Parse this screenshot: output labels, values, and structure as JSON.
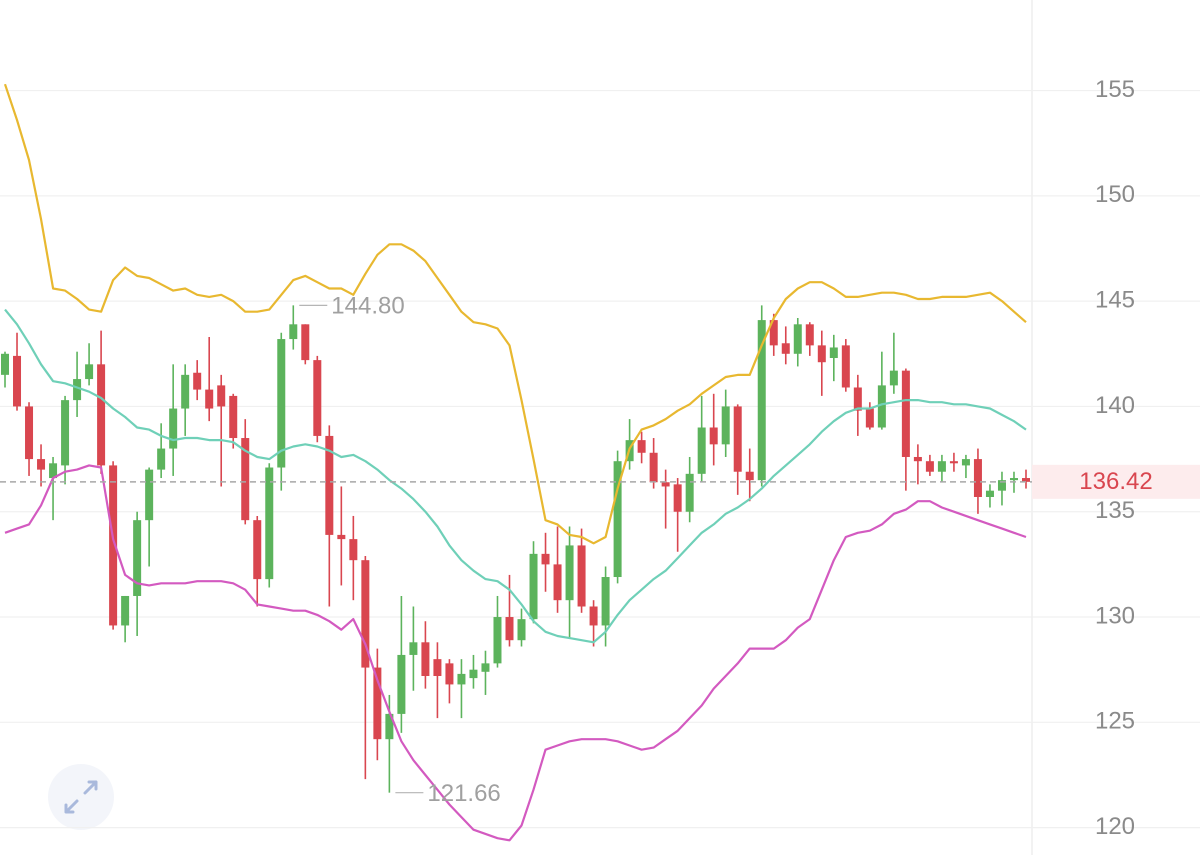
{
  "chart_data": {
    "type": "candlestick",
    "ylim": [
      118.7,
      159.3
    ],
    "yticks": [
      120,
      125,
      130,
      135,
      140,
      145,
      150,
      155
    ],
    "grid": true,
    "up_color": "#5cb35c",
    "down_color": "#d9464f",
    "open": [
      141.5,
      142.4,
      140.0,
      137.5,
      136.6,
      137.2,
      140.3,
      141.3,
      142.0,
      137.2,
      129.6,
      131.0,
      134.6,
      137.0,
      138.0,
      139.9,
      141.6,
      140.8,
      141.0,
      140.5,
      138.5,
      134.6,
      131.8,
      137.1,
      143.2,
      143.9,
      142.2,
      138.6,
      133.9,
      133.7,
      132.7,
      127.6,
      124.2,
      125.4,
      128.2,
      128.8,
      128.0,
      127.8,
      126.8,
      127.1,
      127.4,
      127.8,
      130.0,
      128.9,
      129.9,
      133.0,
      132.5,
      130.8,
      133.4,
      130.5,
      129.6,
      131.9,
      137.4,
      138.4,
      137.8,
      136.4,
      136.3,
      135.0,
      136.8,
      139.0,
      138.2,
      140.0,
      136.9,
      136.5,
      144.1,
      143.0,
      142.5,
      143.9,
      142.9,
      142.3,
      142.9,
      140.9,
      139.9,
      139.0,
      141.0,
      141.7,
      137.6,
      137.4,
      136.9,
      137.4,
      137.2,
      137.5,
      135.7,
      136.0,
      136.5,
      136.6
    ],
    "high": [
      142.6,
      143.5,
      140.2,
      138.2,
      137.6,
      140.5,
      142.6,
      143.0,
      143.6,
      137.4,
      131.0,
      135.0,
      137.1,
      139.2,
      142.0,
      142.0,
      142.2,
      143.3,
      141.5,
      140.6,
      139.4,
      134.8,
      137.3,
      143.5,
      144.8,
      143.9,
      142.4,
      139.1,
      136.2,
      134.8,
      132.9,
      128.5,
      126.3,
      131.0,
      130.5,
      129.8,
      128.8,
      128.0,
      128.0,
      128.2,
      128.4,
      131.0,
      132.0,
      130.4,
      133.6,
      134.0,
      134.3,
      134.3,
      134.2,
      130.8,
      132.4,
      137.9,
      139.4,
      138.8,
      138.5,
      137.0,
      136.6,
      137.6,
      140.5,
      140.6,
      140.8,
      140.1,
      138.0,
      144.8,
      144.4,
      143.8,
      144.2,
      144.0,
      143.6,
      143.4,
      143.2,
      141.5,
      140.2,
      142.6,
      143.5,
      141.8,
      138.2,
      137.7,
      137.7,
      137.8,
      137.7,
      138.0,
      136.3,
      136.9,
      136.9,
      137.0
    ],
    "low": [
      140.9,
      139.8,
      136.7,
      136.2,
      134.6,
      136.3,
      139.5,
      141.0,
      136.8,
      129.4,
      128.8,
      129.1,
      132.4,
      136.6,
      136.7,
      138.6,
      140.3,
      139.3,
      136.2,
      138.0,
      134.4,
      130.5,
      131.4,
      136.0,
      142.7,
      142.0,
      138.3,
      130.5,
      131.5,
      130.8,
      122.3,
      123.2,
      121.66,
      124.5,
      126.5,
      126.6,
      125.2,
      125.9,
      125.2,
      126.6,
      126.3,
      127.6,
      128.6,
      128.6,
      129.7,
      131.2,
      130.2,
      129.0,
      130.2,
      128.6,
      128.6,
      131.6,
      137.0,
      137.3,
      136.1,
      134.2,
      133.1,
      134.5,
      136.4,
      137.2,
      137.6,
      135.8,
      135.5,
      136.2,
      142.4,
      142.0,
      141.9,
      142.4,
      140.5,
      141.2,
      140.7,
      138.6,
      138.9,
      138.9,
      140.6,
      136.0,
      136.3,
      136.7,
      136.4,
      136.9,
      136.6,
      134.9,
      135.2,
      135.3,
      135.9,
      136.1
    ],
    "close": [
      142.5,
      140.0,
      137.5,
      137.0,
      137.3,
      140.3,
      141.3,
      142.0,
      137.2,
      129.6,
      131.0,
      134.6,
      137.0,
      138.0,
      139.9,
      141.5,
      140.8,
      139.9,
      140.0,
      138.5,
      134.6,
      131.8,
      137.1,
      143.2,
      143.9,
      142.2,
      138.6,
      133.9,
      133.7,
      132.7,
      127.6,
      124.2,
      125.4,
      128.2,
      128.8,
      127.2,
      127.2,
      126.8,
      127.3,
      127.5,
      127.8,
      130.0,
      128.9,
      129.9,
      133.0,
      132.5,
      130.8,
      133.4,
      130.5,
      129.6,
      131.9,
      137.4,
      138.4,
      137.8,
      136.4,
      136.2,
      135.0,
      136.8,
      139.0,
      138.2,
      140.0,
      136.9,
      136.5,
      144.1,
      142.9,
      142.5,
      143.9,
      142.9,
      142.1,
      142.8,
      140.9,
      139.8,
      139.0,
      141.0,
      141.7,
      137.6,
      137.4,
      136.9,
      137.4,
      137.3,
      137.5,
      135.7,
      136.0,
      136.5,
      136.6,
      136.42
    ],
    "bands": [
      {
        "color": "#e8b830",
        "values": [
          155.3,
          153.6,
          151.7,
          148.9,
          145.6,
          145.5,
          145.1,
          144.6,
          144.5,
          146.0,
          146.6,
          146.2,
          146.1,
          145.8,
          145.5,
          145.6,
          145.3,
          145.2,
          145.3,
          145.0,
          144.5,
          144.5,
          144.6,
          145.3,
          146.0,
          146.2,
          145.9,
          145.6,
          145.6,
          145.3,
          146.3,
          147.2,
          147.7,
          147.7,
          147.4,
          146.9,
          146.1,
          145.3,
          144.5,
          144.0,
          143.9,
          143.7,
          142.9,
          140.3,
          137.5,
          134.6,
          134.4,
          133.9,
          133.8,
          133.5,
          133.8,
          136.1,
          138.0,
          138.9,
          139.1,
          139.4,
          139.8,
          140.1,
          140.6,
          141.0,
          141.4,
          141.5,
          141.5,
          142.9,
          144.2,
          145.1,
          145.6,
          145.9,
          145.9,
          145.6,
          145.2,
          145.2,
          145.3,
          145.4,
          145.4,
          145.3,
          145.1,
          145.1,
          145.2,
          145.2,
          145.2,
          145.3,
          145.4,
          145.0,
          144.5,
          144.0
        ]
      },
      {
        "color": "#6fd0b8",
        "values": [
          144.6,
          143.9,
          143.0,
          142.0,
          141.2,
          141.1,
          140.9,
          140.7,
          140.4,
          139.9,
          139.5,
          139.0,
          138.9,
          138.6,
          138.4,
          138.5,
          138.5,
          138.4,
          138.4,
          138.3,
          137.9,
          137.6,
          137.5,
          137.9,
          138.1,
          138.2,
          138.1,
          137.9,
          137.6,
          137.7,
          137.4,
          137.0,
          136.5,
          136.1,
          135.6,
          135.0,
          134.3,
          133.4,
          132.7,
          132.2,
          131.8,
          131.7,
          131.3,
          130.6,
          129.8,
          129.3,
          129.1,
          129.0,
          128.9,
          128.8,
          129.3,
          130.1,
          130.8,
          131.3,
          131.8,
          132.2,
          132.8,
          133.4,
          134.0,
          134.4,
          134.9,
          135.2,
          135.6,
          136.1,
          136.7,
          137.2,
          137.7,
          138.2,
          138.8,
          139.3,
          139.7,
          139.9,
          139.9,
          140.1,
          140.2,
          140.3,
          140.3,
          140.2,
          140.2,
          140.1,
          140.1,
          140.0,
          139.9,
          139.6,
          139.3,
          138.9
        ]
      },
      {
        "color": "#d35ac0",
        "values": [
          134.0,
          134.2,
          134.4,
          135.3,
          136.6,
          136.9,
          137.0,
          137.2,
          137.1,
          133.7,
          132.0,
          131.6,
          131.5,
          131.6,
          131.6,
          131.6,
          131.7,
          131.7,
          131.7,
          131.6,
          131.3,
          130.6,
          130.5,
          130.4,
          130.3,
          130.3,
          130.1,
          129.8,
          129.4,
          129.9,
          128.7,
          127.0,
          125.5,
          124.1,
          123.2,
          122.5,
          121.8,
          121.1,
          120.5,
          119.9,
          119.7,
          119.5,
          119.4,
          120.1,
          121.8,
          123.7,
          123.9,
          124.1,
          124.2,
          124.2,
          124.2,
          124.1,
          123.9,
          123.7,
          123.8,
          124.2,
          124.6,
          125.2,
          125.8,
          126.6,
          127.2,
          127.8,
          128.5,
          128.5,
          128.5,
          128.9,
          129.5,
          129.9,
          131.3,
          132.7,
          133.8,
          134.0,
          134.1,
          134.4,
          134.9,
          135.1,
          135.5,
          135.5,
          135.2,
          135.0,
          134.8,
          134.6,
          134.4,
          134.2,
          134.0,
          133.8
        ]
      }
    ],
    "max_label": "144.80",
    "min_label": "121.66",
    "last_price": 136.42
  }
}
